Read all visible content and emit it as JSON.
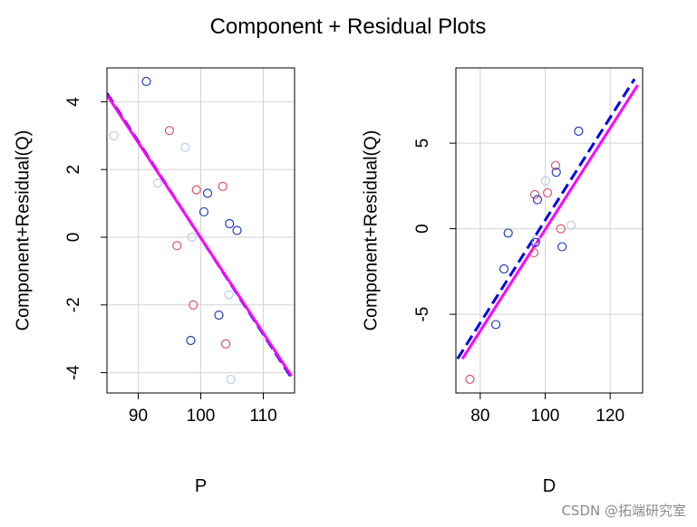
{
  "figure": {
    "title": "Component + Residual Plots",
    "watermark": "CSDN @拓端研究室",
    "colors": {
      "grid": "#d3d3d3",
      "fit_line": "#0000ee",
      "smoother": "#ff00ff",
      "point_palette": [
        "#1f3fbf",
        "#df536b",
        "#b9cbee"
      ]
    }
  },
  "chart_data": [
    {
      "type": "scatter",
      "title": "",
      "xlabel": "P",
      "ylabel": "Component+Residual(Q)",
      "xlim": [
        85,
        115
      ],
      "ylim": [
        -4.6,
        5.0
      ],
      "xticks": [
        90,
        100,
        110
      ],
      "yticks": [
        -4,
        -2,
        0,
        2,
        4
      ],
      "grid": true,
      "points": [
        {
          "x": 91.3,
          "y": 4.6,
          "group": 0
        },
        {
          "x": 86.1,
          "y": 3.0,
          "group": 2
        },
        {
          "x": 95.0,
          "y": 3.15,
          "group": 1
        },
        {
          "x": 97.5,
          "y": 2.65,
          "group": 2
        },
        {
          "x": 93.1,
          "y": 1.6,
          "group": 2
        },
        {
          "x": 99.3,
          "y": 1.4,
          "group": 1
        },
        {
          "x": 101.1,
          "y": 1.3,
          "group": 0
        },
        {
          "x": 103.5,
          "y": 1.5,
          "group": 1
        },
        {
          "x": 100.5,
          "y": 0.75,
          "group": 0
        },
        {
          "x": 104.6,
          "y": 0.4,
          "group": 0
        },
        {
          "x": 105.8,
          "y": 0.2,
          "group": 0
        },
        {
          "x": 98.6,
          "y": 0.0,
          "group": 2
        },
        {
          "x": 96.2,
          "y": -0.25,
          "group": 1
        },
        {
          "x": 104.5,
          "y": -1.7,
          "group": 2
        },
        {
          "x": 98.8,
          "y": -2.0,
          "group": 1
        },
        {
          "x": 102.9,
          "y": -2.3,
          "group": 0
        },
        {
          "x": 98.4,
          "y": -3.05,
          "group": 0
        },
        {
          "x": 104.0,
          "y": -3.15,
          "group": 1
        },
        {
          "x": 104.8,
          "y": -4.2,
          "group": 2
        }
      ],
      "fit_line": {
        "x": [
          85,
          114.5
        ],
        "y": [
          4.25,
          -4.15
        ]
      },
      "smoother": {
        "x": [
          85,
          114.5
        ],
        "y": [
          4.2,
          -4.1
        ]
      }
    },
    {
      "type": "scatter",
      "title": "",
      "xlabel": "D",
      "ylabel": "Component+Residual(Q)",
      "xlim": [
        72.5,
        130
      ],
      "ylim": [
        -9.6,
        9.4
      ],
      "xticks": [
        80,
        100,
        120
      ],
      "yticks": [
        -5,
        0,
        5
      ],
      "grid": true,
      "points": [
        {
          "x": 110.3,
          "y": 5.7,
          "group": 0
        },
        {
          "x": 103.2,
          "y": 3.7,
          "group": 1
        },
        {
          "x": 103.4,
          "y": 3.3,
          "group": 0
        },
        {
          "x": 100.1,
          "y": 2.8,
          "group": 2
        },
        {
          "x": 100.7,
          "y": 2.1,
          "group": 1
        },
        {
          "x": 96.8,
          "y": 2.0,
          "group": 1
        },
        {
          "x": 97.6,
          "y": 1.7,
          "group": 0
        },
        {
          "x": 108.0,
          "y": 0.2,
          "group": 2
        },
        {
          "x": 104.8,
          "y": 0.0,
          "group": 1
        },
        {
          "x": 88.6,
          "y": -0.25,
          "group": 0
        },
        {
          "x": 97.2,
          "y": -0.65,
          "group": 2
        },
        {
          "x": 97.0,
          "y": -0.8,
          "group": 0
        },
        {
          "x": 105.2,
          "y": -1.05,
          "group": 0
        },
        {
          "x": 96.5,
          "y": -1.4,
          "group": 1
        },
        {
          "x": 87.3,
          "y": -2.35,
          "group": 0
        },
        {
          "x": 84.8,
          "y": -5.6,
          "group": 0
        },
        {
          "x": 76.8,
          "y": -8.8,
          "group": 1
        }
      ],
      "fit_line": {
        "x": [
          73,
          127.5
        ],
        "y": [
          -7.6,
          8.75
        ]
      },
      "smoother": {
        "x": [
          74.5,
          128.5
        ],
        "y": [
          -7.6,
          8.4
        ]
      }
    }
  ]
}
